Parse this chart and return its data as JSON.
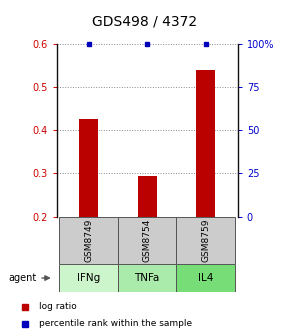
{
  "title": "GDS498 / 4372",
  "samples": [
    "GSM8749",
    "GSM8754",
    "GSM8759"
  ],
  "agents": [
    "IFNg",
    "TNFa",
    "IL4"
  ],
  "log_ratios": [
    0.425,
    0.295,
    0.54
  ],
  "percentile_ranks_pct": [
    100,
    100,
    100
  ],
  "ylim_left": [
    0.2,
    0.6
  ],
  "ylim_right": [
    0,
    100
  ],
  "yticks_left": [
    0.2,
    0.3,
    0.4,
    0.5,
    0.6
  ],
  "yticks_right": [
    0,
    25,
    50,
    75,
    100
  ],
  "ytick_labels_right": [
    "0",
    "25",
    "50",
    "75",
    "100%"
  ],
  "bar_color": "#bb0000",
  "percentile_color": "#0000bb",
  "sample_box_color": "#cccccc",
  "agent_colors": [
    "#ccf5cc",
    "#aaeaaa",
    "#77dd77"
  ],
  "title_fontsize": 10,
  "left_tick_color": "#cc0000",
  "right_tick_color": "#0000cc",
  "grid_color": "#888888",
  "bg_color": "#ffffff",
  "bar_width": 0.32,
  "spine_color": "#111111"
}
